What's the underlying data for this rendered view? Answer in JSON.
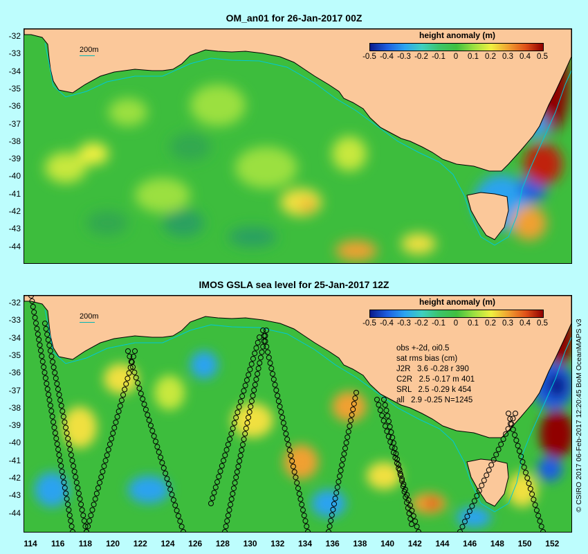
{
  "map1": {
    "title": "OM_an01 for 26-Jan-2017 00Z",
    "contour_label": "200m"
  },
  "map2": {
    "title": "IMOS GSLA sea level  for 25-Jan-2017 12Z",
    "contour_label": "200m",
    "stats": {
      "header1": "obs +-2d, oi0.5",
      "header2": "sat rms bias (cm)",
      "rows": [
        "J2R   3.6 -0.28 r 390",
        "C2R   2.5 -0.17 m 401",
        "SRL   2.5 -0.29 k 454",
        "all   2.9 -0.25 N=1245"
      ]
    }
  },
  "legend": {
    "title": "height anomaly (m)",
    "ticks": [
      "-0.5",
      "-0.4",
      "-0.3",
      "-0.2",
      "-0.1",
      "0",
      "0.1",
      "0.2",
      "0.3",
      "0.4",
      "0.5"
    ],
    "gradient": [
      "#0a1a8c",
      "#1f5fe0",
      "#2ba3f0",
      "#3ecfc0",
      "#3cc46a",
      "#40c040",
      "#9be040",
      "#f0f040",
      "#f0a030",
      "#e05018",
      "#900000"
    ]
  },
  "y_ticks": [
    "-32",
    "-33",
    "-34",
    "-35",
    "-36",
    "-37",
    "-38",
    "-39",
    "-40",
    "-41",
    "-42",
    "-43",
    "-44"
  ],
  "x_ticks": [
    "114",
    "116",
    "118",
    "120",
    "122",
    "124",
    "126",
    "128",
    "130",
    "132",
    "134",
    "136",
    "138",
    "140",
    "142",
    "144",
    "146",
    "148",
    "150",
    "152"
  ],
  "credit": "© CSIRO 2017  06-Feb-2017 12:20:45 BoM OceanMAPS v3",
  "colors": {
    "land": "#fbc89a",
    "sea_anomaly_zero": "#40c040",
    "background": "#bdfdfd",
    "contour_200m": "#00c8d8"
  }
}
